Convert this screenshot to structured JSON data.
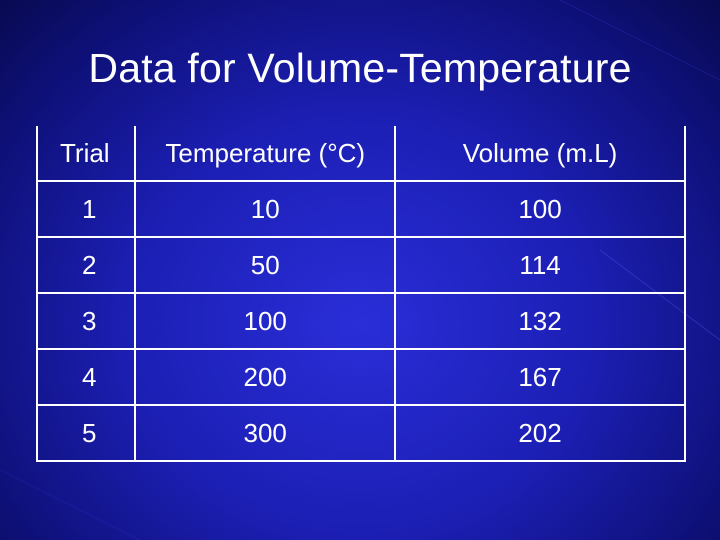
{
  "slide": {
    "title": "Data for Volume-Temperature"
  },
  "table": {
    "headers": [
      "Trial",
      "Temperature (°C)",
      "Volume (m.L)"
    ],
    "rows": [
      [
        "1",
        "10",
        "100"
      ],
      [
        "2",
        "50",
        "114"
      ],
      [
        "3",
        "100",
        "132"
      ],
      [
        "4",
        "200",
        "167"
      ],
      [
        "5",
        "300",
        "202"
      ]
    ]
  },
  "colors": {
    "background": "#1c1fb4",
    "text": "#ffffff",
    "grid": "#ffffff"
  }
}
